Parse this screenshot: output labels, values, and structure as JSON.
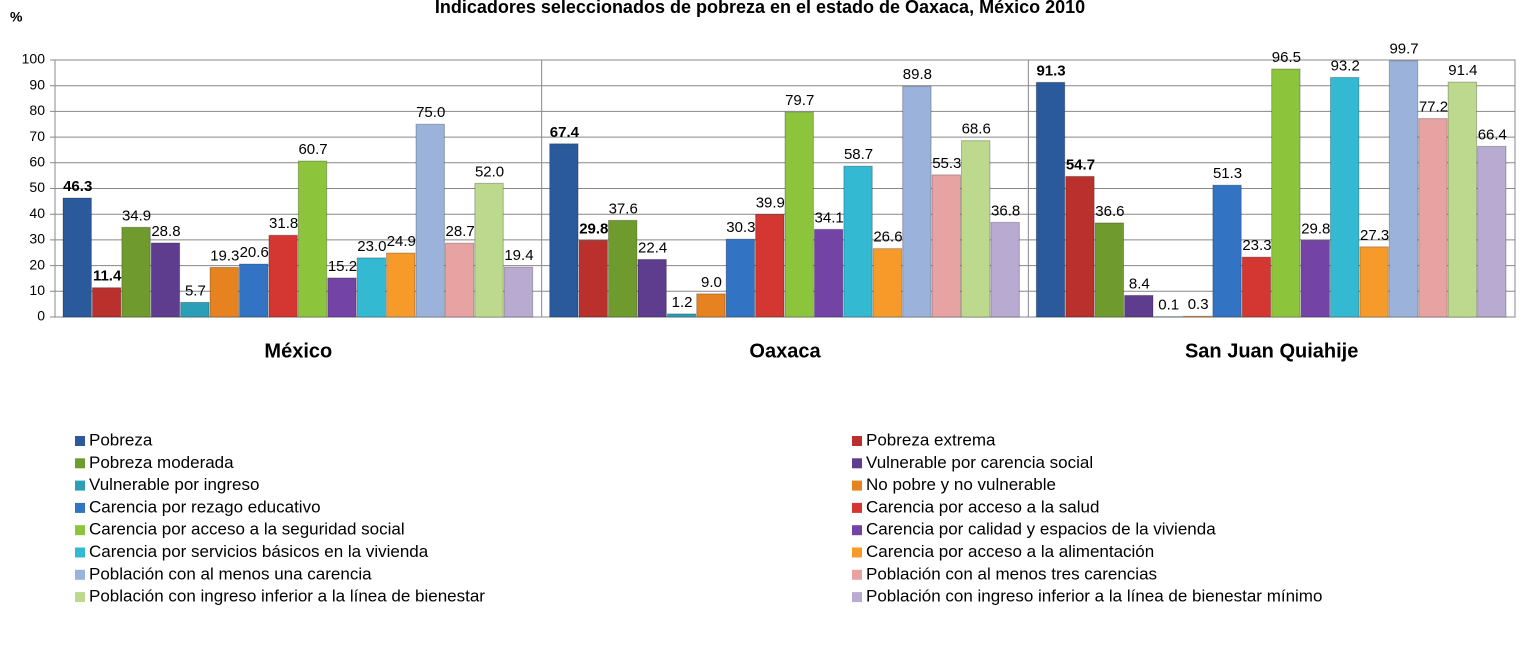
{
  "chart_data": {
    "type": "bar",
    "title": "Indicadores seleccionados de pobreza en el estado de Oaxaca, México 2010",
    "ylabel": "%",
    "categories": [
      "México",
      "Oaxaca",
      "San Juan Quiahije"
    ],
    "ylim": [
      0,
      100
    ],
    "yticks": [
      0,
      10,
      20,
      30,
      40,
      50,
      60,
      70,
      80,
      90,
      100
    ],
    "series": [
      {
        "name": "Pobreza",
        "color": "#2a5a9c",
        "values": [
          46.3,
          67.4,
          91.3
        ],
        "value_labels": [
          "46.3",
          "67.4",
          "91.3"
        ]
      },
      {
        "name": "Pobreza extrema",
        "color": "#b9302c",
        "values": [
          11.4,
          29.8,
          54.7
        ],
        "value_labels": [
          "11.4",
          "29.8",
          "54.7"
        ]
      },
      {
        "name": "Pobreza moderada",
        "color": "#6f9a2e",
        "values": [
          34.9,
          37.6,
          36.6
        ],
        "value_labels": [
          "34.9",
          "37.6",
          "36.6"
        ]
      },
      {
        "name": "Vulnerable por carencia social",
        "color": "#5e3d8f",
        "values": [
          28.8,
          22.4,
          8.4
        ],
        "value_labels": [
          "28.8",
          "22.4",
          "8.4"
        ]
      },
      {
        "name": "Vulnerable por ingreso",
        "color": "#2b9fb8",
        "values": [
          5.7,
          1.2,
          0.1
        ],
        "value_labels": [
          "5.7",
          "1.2",
          "0.1"
        ]
      },
      {
        "name": "No pobre y no vulnerable",
        "color": "#e6821f",
        "values": [
          19.3,
          9.0,
          0.3
        ],
        "value_labels": [
          "19.3",
          "9.0",
          "0.3"
        ]
      },
      {
        "name": "Carencia por rezago educativo",
        "color": "#3373c4",
        "values": [
          20.6,
          30.3,
          51.3
        ],
        "value_labels": [
          "20.6",
          "30.3",
          "51.3"
        ]
      },
      {
        "name": "Carencia por acceso a la salud",
        "color": "#d43631",
        "values": [
          31.8,
          39.9,
          23.3
        ],
        "value_labels": [
          "31.8",
          "39.9",
          "23.3"
        ]
      },
      {
        "name": "Carencia por acceso a la seguridad social",
        "color": "#8cc53b",
        "values": [
          60.7,
          79.7,
          96.5
        ],
        "value_labels": [
          "60.7",
          "79.7",
          "96.5"
        ]
      },
      {
        "name": "Carencia por calidad y espacios de la vivienda",
        "color": "#7443a6",
        "values": [
          15.2,
          34.1,
          29.8
        ],
        "value_labels": [
          "15.2",
          "34.1",
          "29.8"
        ]
      },
      {
        "name": "Carencia por servicios básicos en la vivienda",
        "color": "#33b9d2",
        "values": [
          23.0,
          58.7,
          93.2
        ],
        "value_labels": [
          "23.0",
          "58.7",
          "93.2"
        ]
      },
      {
        "name": "Carencia por acceso a la alimentación",
        "color": "#f69b2a",
        "values": [
          24.9,
          26.6,
          27.3
        ],
        "value_labels": [
          "24.9",
          "26.6",
          "27.3"
        ]
      },
      {
        "name": "Población con al menos una carencia",
        "color": "#9bb2da",
        "values": [
          75.0,
          89.8,
          99.7
        ],
        "value_labels": [
          "75.0",
          "89.8",
          "99.7"
        ]
      },
      {
        "name": "Población con al menos tres carencias",
        "color": "#e6a3a2",
        "values": [
          28.7,
          55.3,
          77.2
        ],
        "value_labels": [
          "28.7",
          "55.3",
          "77.2"
        ]
      },
      {
        "name": "Población con ingreso inferior a la línea de bienestar",
        "color": "#bcd98d",
        "values": [
          52.0,
          68.6,
          91.4
        ],
        "value_labels": [
          "52.0",
          "68.6",
          "91.4"
        ]
      },
      {
        "name": "Población con ingreso inferior a la línea de bienestar mínimo",
        "color": "#b9aad2",
        "values": [
          19.4,
          36.8,
          66.4
        ],
        "value_labels": [
          "19.4",
          "36.8",
          "66.4"
        ]
      }
    ]
  }
}
